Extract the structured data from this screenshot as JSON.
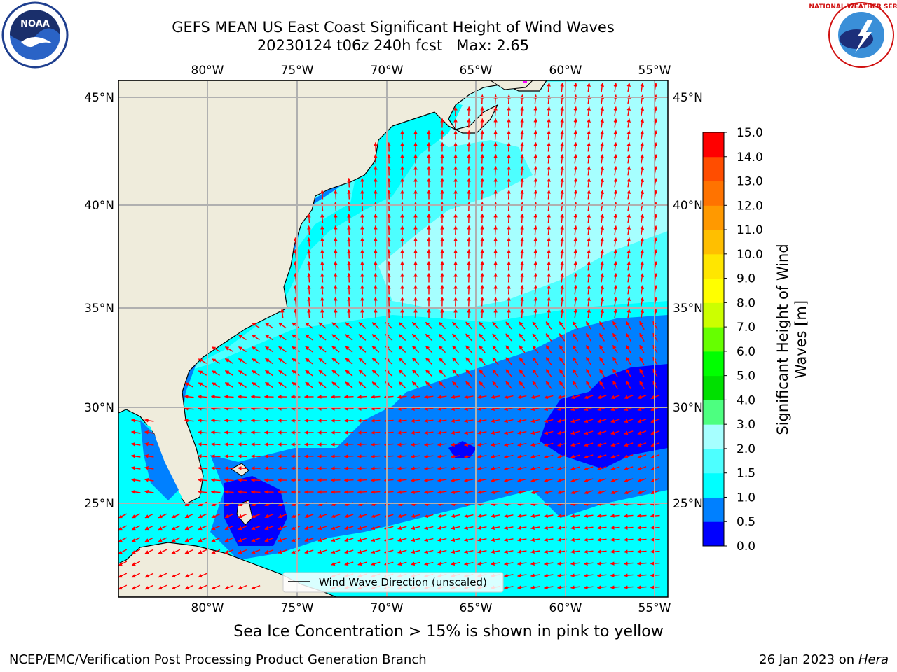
{
  "title": {
    "line1": "GEFS MEAN US East Coast Significant Height of Wind Waves",
    "line2": "20230124 t06z 240h fcst   Max: 2.65"
  },
  "logos": {
    "left": {
      "icon": "noaa-logo",
      "text": "NOAA"
    },
    "right": {
      "icon": "national-weather-service-logo",
      "text": "NATIONAL WEATHER SERVICE"
    }
  },
  "map": {
    "lon_labels": [
      "80°W",
      "75°W",
      "70°W",
      "65°W",
      "60°W",
      "55°W"
    ],
    "lat_labels": [
      "45°N",
      "40°N",
      "35°N",
      "30°N",
      "25°N"
    ],
    "land_color": "#efecdc",
    "legend_label": "Wind Wave Direction (unscaled)",
    "arrow_color": "#ff0000"
  },
  "colorbar": {
    "label_line1": "Significant Height of Wind",
    "label_line2": "Waves [m]",
    "ticks": [
      "0.0",
      "0.5",
      "1.0",
      "1.5",
      "2.0",
      "3.0",
      "4.0",
      "5.0",
      "6.0",
      "7.0",
      "8.0",
      "9.0",
      "10.0",
      "11.0",
      "12.0",
      "13.0",
      "14.0",
      "15.0"
    ],
    "colors": [
      "#0000ff",
      "#0080ff",
      "#00ffff",
      "#4dffff",
      "#a6ffff",
      "#4dff80",
      "#00e000",
      "#00ff00",
      "#66ff00",
      "#ccff00",
      "#ffff00",
      "#ffe600",
      "#ffbf00",
      "#ff9900",
      "#ff7300",
      "#ff4d00",
      "#ff0000"
    ]
  },
  "caption": "Sea Ice Concentration > 15% is shown in pink to yellow",
  "footer": {
    "left": "NCEP/EMC/Verification Post Processing Product Generation Branch",
    "right_date": "26 Jan 2023 on ",
    "right_machine": "Hera"
  }
}
